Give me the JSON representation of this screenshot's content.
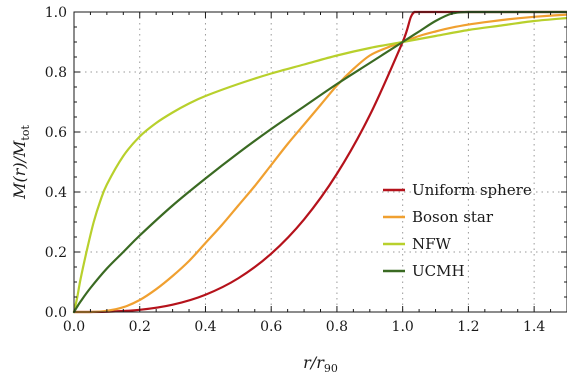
{
  "chart_data": {
    "type": "line",
    "xlabel": "r/r₉₀",
    "xlabel_main": "r/r",
    "xlabel_sub": "90",
    "ylabel_main": "M(r)/M",
    "ylabel_sub": "tot",
    "xlim": [
      0.0,
      1.5
    ],
    "ylim": [
      0.0,
      1.0
    ],
    "x_ticks": [
      0.0,
      0.2,
      0.4,
      0.6,
      0.8,
      1.0,
      1.2,
      1.4
    ],
    "x_tick_labels": [
      "0.0",
      "0.2",
      "0.4",
      "0.6",
      "0.8",
      "1.0",
      "1.2",
      "1.4"
    ],
    "y_ticks": [
      0.0,
      0.2,
      0.4,
      0.6,
      0.8,
      1.0
    ],
    "y_tick_labels": [
      "0.0",
      "0.2",
      "0.4",
      "0.6",
      "0.8",
      "1.0"
    ],
    "grid": true,
    "legend_position": "bottom-right",
    "series": [
      {
        "name": "Uniform sphere",
        "color": "#b5121b",
        "x": [
          0.0,
          0.1,
          0.2,
          0.3,
          0.4,
          0.5,
          0.6,
          0.7,
          0.8,
          0.9,
          1.0,
          1.035,
          1.1,
          1.2,
          1.3,
          1.4,
          1.5
        ],
        "y": [
          0.0,
          0.0009,
          0.0072,
          0.0243,
          0.0576,
          0.1125,
          0.1944,
          0.3087,
          0.4608,
          0.6561,
          0.9,
          1.0,
          1.0,
          1.0,
          1.0,
          1.0,
          1.0
        ]
      },
      {
        "name": "Boson star",
        "color": "#f0a030",
        "x": [
          0.0,
          0.05,
          0.1,
          0.15,
          0.2,
          0.25,
          0.3,
          0.35,
          0.4,
          0.45,
          0.5,
          0.55,
          0.6,
          0.65,
          0.7,
          0.75,
          0.8,
          0.85,
          0.9,
          0.95,
          1.0,
          1.05,
          1.1,
          1.15,
          1.2,
          1.25,
          1.3,
          1.35,
          1.4,
          1.45,
          1.5
        ],
        "y": [
          0.0,
          0.0,
          0.004,
          0.016,
          0.04,
          0.076,
          0.12,
          0.17,
          0.23,
          0.29,
          0.355,
          0.42,
          0.49,
          0.56,
          0.625,
          0.69,
          0.755,
          0.81,
          0.855,
          0.88,
          0.9,
          0.92,
          0.935,
          0.948,
          0.958,
          0.966,
          0.973,
          0.979,
          0.984,
          0.988,
          0.991
        ]
      },
      {
        "name": "NFW",
        "color": "#b8d02c",
        "x": [
          0.0,
          0.01,
          0.02,
          0.04,
          0.06,
          0.08,
          0.1,
          0.15,
          0.2,
          0.25,
          0.3,
          0.35,
          0.4,
          0.5,
          0.6,
          0.7,
          0.8,
          0.9,
          1.0,
          1.1,
          1.2,
          1.3,
          1.4,
          1.5
        ],
        "y": [
          0.0,
          0.05,
          0.11,
          0.21,
          0.3,
          0.37,
          0.425,
          0.52,
          0.585,
          0.63,
          0.665,
          0.695,
          0.72,
          0.76,
          0.795,
          0.825,
          0.855,
          0.88,
          0.9,
          0.92,
          0.94,
          0.955,
          0.97,
          0.98
        ]
      },
      {
        "name": "UCMH",
        "color": "#3a6a22",
        "x": [
          0.0,
          0.01,
          0.02,
          0.05,
          0.1,
          0.15,
          0.2,
          0.3,
          0.4,
          0.5,
          0.6,
          0.7,
          0.8,
          0.9,
          1.0,
          1.05,
          1.1,
          1.15,
          1.2,
          1.3,
          1.4,
          1.5
        ],
        "y": [
          0.0,
          0.018,
          0.035,
          0.08,
          0.145,
          0.2,
          0.255,
          0.355,
          0.445,
          0.53,
          0.61,
          0.685,
          0.76,
          0.83,
          0.9,
          0.935,
          0.97,
          0.995,
          1.0,
          1.0,
          1.0,
          1.0
        ]
      }
    ]
  }
}
